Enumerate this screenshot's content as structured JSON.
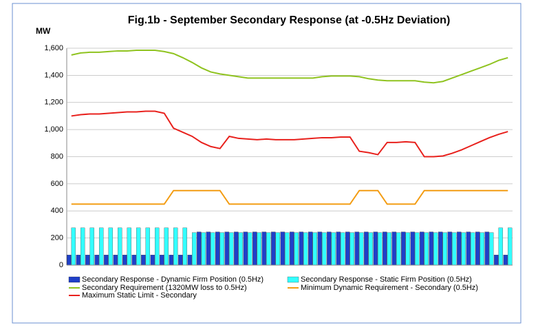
{
  "chart_data": {
    "type": "bar-line",
    "title": "Fig.1b - September Secondary Response (at -0.5Hz Deviation)",
    "y_label": "MW",
    "categories": [
      null,
      null,
      null,
      null,
      null,
      null,
      null,
      null,
      null,
      null,
      null,
      null,
      null,
      null,
      null,
      null,
      null,
      null,
      null,
      null,
      null,
      null,
      null,
      null,
      null,
      null,
      null,
      null,
      null,
      null,
      null,
      null,
      null,
      null,
      null,
      null,
      null,
      null,
      null,
      null,
      null,
      null,
      null,
      null,
      null,
      null,
      null,
      null
    ],
    "ylim": [
      0,
      1600
    ],
    "yticks": [
      0,
      200,
      400,
      600,
      800,
      {
        "value": 1000,
        "label": "1,000"
      },
      {
        "value": 1200,
        "label": "1,200"
      },
      {
        "value": 1400,
        "label": "1,400"
      },
      {
        "value": 1600,
        "label": "1,600"
      }
    ],
    "grid": true,
    "series": [
      {
        "name": "Secondary Response - Dynamic Firm Position (0.5Hz)",
        "kind": "bar",
        "color": "#1f3fc8",
        "values": [
          75,
          75,
          75,
          75,
          75,
          75,
          75,
          75,
          75,
          75,
          75,
          75,
          75,
          75,
          245,
          245,
          245,
          245,
          245,
          245,
          245,
          245,
          245,
          245,
          245,
          245,
          245,
          245,
          245,
          245,
          245,
          245,
          245,
          245,
          245,
          245,
          245,
          245,
          245,
          245,
          245,
          245,
          245,
          245,
          245,
          245,
          75,
          75
        ]
      },
      {
        "name": "Secondary Response - Static Firm Position (0.5Hz)",
        "kind": "bar",
        "color": "#33ffff",
        "values": [
          275,
          275,
          275,
          275,
          275,
          275,
          275,
          275,
          275,
          275,
          275,
          275,
          275,
          240,
          240,
          240,
          240,
          240,
          240,
          240,
          240,
          240,
          240,
          240,
          240,
          240,
          240,
          240,
          240,
          240,
          240,
          240,
          240,
          240,
          240,
          240,
          240,
          240,
          240,
          240,
          240,
          240,
          240,
          240,
          240,
          240,
          275,
          275
        ]
      },
      {
        "name": "Secondary Requirement (1320MW loss to 0.5Hz)",
        "kind": "line",
        "color": "#8fc31f",
        "values": [
          1550,
          1565,
          1570,
          1570,
          1575,
          1580,
          1580,
          1585,
          1585,
          1585,
          1575,
          1560,
          1530,
          1495,
          1455,
          1425,
          1410,
          1400,
          1390,
          1380,
          1380,
          1380,
          1380,
          1380,
          1380,
          1380,
          1380,
          1390,
          1395,
          1395,
          1395,
          1390,
          1375,
          1365,
          1360,
          1360,
          1360,
          1360,
          1350,
          1345,
          1355,
          1380,
          1405,
          1430,
          1455,
          1480,
          1510,
          1530
        ]
      },
      {
        "name": "Minimum Dynamic Requirement - Secondary  (0.5Hz)",
        "kind": "line",
        "color": "#f39c12",
        "values": [
          450,
          450,
          450,
          450,
          450,
          450,
          450,
          450,
          450,
          450,
          450,
          550,
          550,
          550,
          550,
          550,
          550,
          450,
          450,
          450,
          450,
          450,
          450,
          450,
          450,
          450,
          450,
          450,
          450,
          450,
          450,
          550,
          550,
          550,
          450,
          450,
          450,
          450,
          550,
          550,
          550,
          550,
          550,
          550,
          550,
          550,
          550,
          550
        ]
      },
      {
        "name": "Maximum Static Limit - Secondary",
        "kind": "line",
        "color": "#e8201c",
        "values": [
          1100,
          1110,
          1115,
          1115,
          1120,
          1125,
          1130,
          1130,
          1135,
          1135,
          1120,
          1010,
          980,
          950,
          905,
          875,
          860,
          950,
          935,
          930,
          925,
          930,
          925,
          925,
          925,
          930,
          935,
          940,
          940,
          945,
          945,
          840,
          830,
          815,
          905,
          905,
          910,
          905,
          800,
          800,
          805,
          825,
          850,
          880,
          910,
          940,
          965,
          985
        ]
      }
    ]
  }
}
